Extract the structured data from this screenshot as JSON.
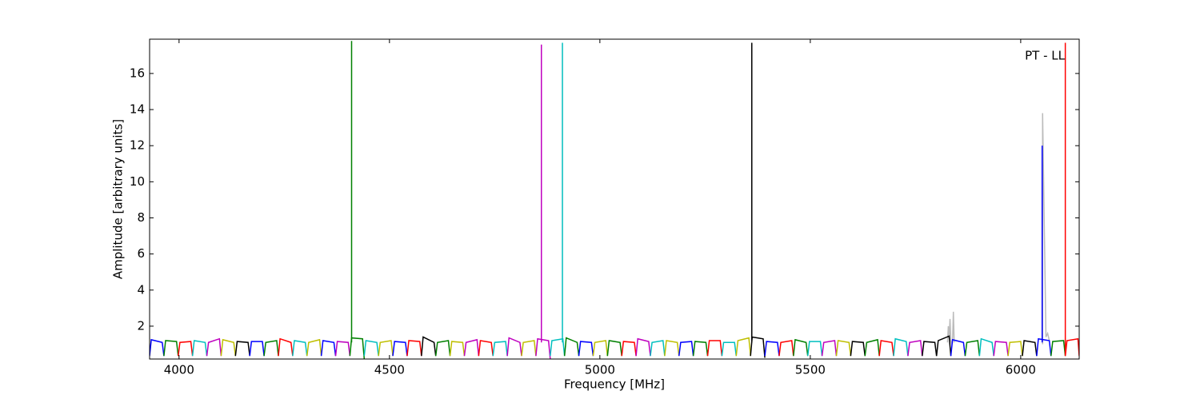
{
  "chart_data": {
    "type": "line",
    "xlabel": "Frequency [MHz]",
    "ylabel": "Amplitude [arbitrary units]",
    "annotation": "PT - LL",
    "xlim": [
      3930,
      6139
    ],
    "ylim": [
      0.18,
      17.9
    ],
    "xticks": [
      4000,
      4500,
      5000,
      5500,
      6000
    ],
    "yticks": [
      2,
      4,
      6,
      8,
      10,
      12,
      14,
      16
    ],
    "series": [
      {
        "color": "#bbbbbb",
        "x": [
          5826,
          5828,
          5830,
          5832,
          5834,
          5836,
          5838,
          5840,
          5842
        ],
        "values": [
          1.1,
          2.0,
          1.3,
          2.4,
          1.2,
          1.0,
          1.1,
          2.8,
          1.1
        ]
      },
      {
        "color": "#bbbbbb",
        "x": [
          6052,
          6052,
          6060,
          6064,
          6068
        ],
        "values": [
          1.0,
          13.8,
          1.4,
          1.6,
          1.2
        ]
      },
      {
        "color": "#0000ff",
        "x": [
          3930,
          3934,
          3960,
          3964
        ],
        "values": [
          0.35,
          1.25,
          1.1,
          0.35
        ]
      },
      {
        "color": "#008000",
        "x": [
          3964,
          3968,
          3994,
          3998
        ],
        "values": [
          0.35,
          1.2,
          1.15,
          0.35
        ]
      },
      {
        "color": "#ff0000",
        "x": [
          3998,
          4002,
          4028,
          4032
        ],
        "values": [
          0.35,
          1.1,
          1.15,
          0.35
        ]
      },
      {
        "color": "#00bfbf",
        "x": [
          4032,
          4036,
          4062,
          4066
        ],
        "values": [
          0.35,
          1.2,
          1.1,
          0.35
        ]
      },
      {
        "color": "#bf00bf",
        "x": [
          4066,
          4070,
          4096,
          4100
        ],
        "values": [
          0.35,
          1.1,
          1.3,
          0.35
        ]
      },
      {
        "color": "#bfbf00",
        "x": [
          4100,
          4104,
          4130,
          4134
        ],
        "values": [
          0.35,
          1.25,
          1.1,
          0.35
        ]
      },
      {
        "color": "#000000",
        "x": [
          4134,
          4138,
          4164,
          4168
        ],
        "values": [
          0.35,
          1.15,
          1.1,
          0.35
        ]
      },
      {
        "color": "#0000ff",
        "x": [
          4168,
          4172,
          4198,
          4202
        ],
        "values": [
          0.35,
          1.15,
          1.15,
          0.35
        ]
      },
      {
        "color": "#008000",
        "x": [
          4202,
          4206,
          4232,
          4236
        ],
        "values": [
          0.35,
          1.1,
          1.2,
          0.35
        ]
      },
      {
        "color": "#ff0000",
        "x": [
          4236,
          4240,
          4266,
          4270
        ],
        "values": [
          0.35,
          1.3,
          1.1,
          0.35
        ]
      },
      {
        "color": "#00bfbf",
        "x": [
          4270,
          4274,
          4300,
          4304
        ],
        "values": [
          0.35,
          1.2,
          1.1,
          0.35
        ]
      },
      {
        "color": "#bfbf00",
        "x": [
          4304,
          4308,
          4334,
          4338
        ],
        "values": [
          0.35,
          1.1,
          1.25,
          0.35
        ]
      },
      {
        "color": "#0000ff",
        "x": [
          4338,
          4342,
          4368,
          4372
        ],
        "values": [
          0.35,
          1.2,
          1.1,
          0.35
        ]
      },
      {
        "color": "#bf00bf",
        "x": [
          4372,
          4376,
          4402,
          4406
        ],
        "values": [
          0.35,
          1.15,
          1.1,
          0.35
        ]
      },
      {
        "color": "#008000",
        "x": [
          4406,
          4410,
          4436,
          4440
        ],
        "values": [
          0.35,
          1.35,
          1.3,
          0.2
        ]
      },
      {
        "color": "#00bfbf",
        "x": [
          4440,
          4444,
          4470,
          4474
        ],
        "values": [
          0.35,
          1.2,
          1.1,
          0.35
        ]
      },
      {
        "color": "#bfbf00",
        "x": [
          4474,
          4478,
          4504,
          4508
        ],
        "values": [
          0.35,
          1.1,
          1.2,
          0.35
        ]
      },
      {
        "color": "#0000ff",
        "x": [
          4508,
          4512,
          4538,
          4542
        ],
        "values": [
          0.35,
          1.15,
          1.1,
          0.35
        ]
      },
      {
        "color": "#ff0000",
        "x": [
          4542,
          4546,
          4572,
          4576
        ],
        "values": [
          0.35,
          1.2,
          1.15,
          0.35
        ]
      },
      {
        "color": "#000000",
        "x": [
          4576,
          4580,
          4606,
          4610
        ],
        "values": [
          0.35,
          1.4,
          1.1,
          0.35
        ]
      },
      {
        "color": "#008000",
        "x": [
          4610,
          4614,
          4640,
          4644
        ],
        "values": [
          0.35,
          1.1,
          1.2,
          0.35
        ]
      },
      {
        "color": "#bfbf00",
        "x": [
          4644,
          4648,
          4674,
          4678
        ],
        "values": [
          0.35,
          1.15,
          1.1,
          0.35
        ]
      },
      {
        "color": "#bf00bf",
        "x": [
          4678,
          4682,
          4708,
          4712
        ],
        "values": [
          0.35,
          1.1,
          1.25,
          0.35
        ]
      },
      {
        "color": "#ff0000",
        "x": [
          4712,
          4716,
          4742,
          4746
        ],
        "values": [
          0.35,
          1.2,
          1.1,
          0.35
        ]
      },
      {
        "color": "#00bfbf",
        "x": [
          4746,
          4750,
          4776,
          4780
        ],
        "values": [
          0.35,
          1.1,
          1.15,
          0.35
        ]
      },
      {
        "color": "#bf00bf",
        "x": [
          4780,
          4784,
          4810,
          4814
        ],
        "values": [
          0.35,
          1.35,
          1.1,
          0.35
        ]
      },
      {
        "color": "#bfbf00",
        "x": [
          4814,
          4818,
          4844,
          4848
        ],
        "values": [
          0.35,
          1.1,
          1.2,
          0.35
        ]
      },
      {
        "color": "#bf00bf",
        "x": [
          4848,
          4852,
          4878,
          4882
        ],
        "values": [
          0.35,
          1.3,
          1.2,
          0.2
        ]
      },
      {
        "color": "#00bfbf",
        "x": [
          4882,
          4886,
          4912,
          4916
        ],
        "values": [
          0.35,
          1.2,
          1.3,
          0.35
        ]
      },
      {
        "color": "#008000",
        "x": [
          4916,
          4920,
          4946,
          4950
        ],
        "values": [
          0.35,
          1.35,
          1.1,
          0.35
        ]
      },
      {
        "color": "#0000ff",
        "x": [
          4950,
          4954,
          4980,
          4984
        ],
        "values": [
          0.35,
          1.15,
          1.1,
          0.35
        ]
      },
      {
        "color": "#bfbf00",
        "x": [
          4984,
          4988,
          5014,
          5018
        ],
        "values": [
          0.35,
          1.1,
          1.2,
          0.35
        ]
      },
      {
        "color": "#008000",
        "x": [
          5018,
          5022,
          5048,
          5052
        ],
        "values": [
          0.35,
          1.2,
          1.1,
          0.35
        ]
      },
      {
        "color": "#ff0000",
        "x": [
          5052,
          5056,
          5082,
          5086
        ],
        "values": [
          0.35,
          1.15,
          1.1,
          0.35
        ]
      },
      {
        "color": "#bf00bf",
        "x": [
          5086,
          5090,
          5116,
          5120
        ],
        "values": [
          0.35,
          1.3,
          1.15,
          0.35
        ]
      },
      {
        "color": "#00bfbf",
        "x": [
          5120,
          5124,
          5150,
          5154
        ],
        "values": [
          0.35,
          1.1,
          1.2,
          0.35
        ]
      },
      {
        "color": "#bfbf00",
        "x": [
          5154,
          5158,
          5184,
          5188
        ],
        "values": [
          0.35,
          1.2,
          1.1,
          0.35
        ]
      },
      {
        "color": "#0000ff",
        "x": [
          5188,
          5192,
          5218,
          5222
        ],
        "values": [
          0.35,
          1.1,
          1.15,
          0.35
        ]
      },
      {
        "color": "#008000",
        "x": [
          5222,
          5226,
          5252,
          5256
        ],
        "values": [
          0.35,
          1.15,
          1.1,
          0.35
        ]
      },
      {
        "color": "#ff0000",
        "x": [
          5256,
          5260,
          5286,
          5290
        ],
        "values": [
          0.35,
          1.2,
          1.2,
          0.35
        ]
      },
      {
        "color": "#00bfbf",
        "x": [
          5290,
          5294,
          5320,
          5324
        ],
        "values": [
          0.35,
          1.1,
          1.1,
          0.35
        ]
      },
      {
        "color": "#bfbf00",
        "x": [
          5324,
          5328,
          5354,
          5358
        ],
        "values": [
          0.35,
          1.2,
          1.35,
          0.35
        ]
      },
      {
        "color": "#000000",
        "x": [
          5358,
          5362,
          5388,
          5392
        ],
        "values": [
          0.35,
          1.4,
          1.3,
          0.25
        ]
      },
      {
        "color": "#0000ff",
        "x": [
          5392,
          5396,
          5422,
          5426
        ],
        "values": [
          0.35,
          1.15,
          1.1,
          0.35
        ]
      },
      {
        "color": "#ff0000",
        "x": [
          5426,
          5430,
          5456,
          5460
        ],
        "values": [
          0.35,
          1.1,
          1.2,
          0.35
        ]
      },
      {
        "color": "#008000",
        "x": [
          5460,
          5464,
          5490,
          5494
        ],
        "values": [
          0.35,
          1.25,
          1.1,
          0.35
        ]
      },
      {
        "color": "#00bfbf",
        "x": [
          5494,
          5498,
          5524,
          5528
        ],
        "values": [
          0.35,
          1.15,
          1.15,
          0.35
        ]
      },
      {
        "color": "#bf00bf",
        "x": [
          5528,
          5532,
          5558,
          5562
        ],
        "values": [
          0.35,
          1.1,
          1.2,
          0.35
        ]
      },
      {
        "color": "#bfbf00",
        "x": [
          5562,
          5566,
          5592,
          5596
        ],
        "values": [
          0.35,
          1.2,
          1.1,
          0.35
        ]
      },
      {
        "color": "#000000",
        "x": [
          5596,
          5600,
          5626,
          5630
        ],
        "values": [
          0.35,
          1.15,
          1.1,
          0.35
        ]
      },
      {
        "color": "#008000",
        "x": [
          5630,
          5634,
          5660,
          5664
        ],
        "values": [
          0.35,
          1.1,
          1.25,
          0.35
        ]
      },
      {
        "color": "#ff0000",
        "x": [
          5664,
          5668,
          5694,
          5698
        ],
        "values": [
          0.35,
          1.2,
          1.1,
          0.35
        ]
      },
      {
        "color": "#00bfbf",
        "x": [
          5698,
          5702,
          5728,
          5732
        ],
        "values": [
          0.35,
          1.3,
          1.15,
          0.35
        ]
      },
      {
        "color": "#bf00bf",
        "x": [
          5732,
          5736,
          5762,
          5766
        ],
        "values": [
          0.35,
          1.1,
          1.2,
          0.35
        ]
      },
      {
        "color": "#000000",
        "x": [
          5766,
          5770,
          5796,
          5800
        ],
        "values": [
          0.35,
          1.15,
          1.1,
          0.35
        ]
      },
      {
        "color": "#000000",
        "x": [
          5800,
          5804,
          5830,
          5834
        ],
        "values": [
          0.35,
          1.2,
          1.45,
          0.35
        ]
      },
      {
        "color": "#0000ff",
        "x": [
          5834,
          5838,
          5864,
          5868
        ],
        "values": [
          0.35,
          1.25,
          1.1,
          0.35
        ]
      },
      {
        "color": "#008000",
        "x": [
          5868,
          5872,
          5898,
          5902
        ],
        "values": [
          0.35,
          1.1,
          1.2,
          0.35
        ]
      },
      {
        "color": "#00bfbf",
        "x": [
          5902,
          5906,
          5932,
          5936
        ],
        "values": [
          0.35,
          1.3,
          1.1,
          0.35
        ]
      },
      {
        "color": "#bf00bf",
        "x": [
          5936,
          5940,
          5966,
          5970
        ],
        "values": [
          0.35,
          1.15,
          1.1,
          0.35
        ]
      },
      {
        "color": "#bfbf00",
        "x": [
          5970,
          5974,
          6000,
          6004
        ],
        "values": [
          0.35,
          1.1,
          1.15,
          0.35
        ]
      },
      {
        "color": "#000000",
        "x": [
          6004,
          6008,
          6034,
          6038
        ],
        "values": [
          0.35,
          1.2,
          1.1,
          0.35
        ]
      },
      {
        "color": "#0000ff",
        "x": [
          6038,
          6042,
          6068,
          6072
        ],
        "values": [
          0.35,
          1.3,
          1.2,
          0.35
        ]
      },
      {
        "color": "#008000",
        "x": [
          6072,
          6076,
          6102,
          6106
        ],
        "values": [
          0.35,
          1.15,
          1.2,
          0.35
        ]
      },
      {
        "color": "#ff0000",
        "x": [
          6106,
          6110,
          6136,
          6139
        ],
        "values": [
          0.35,
          1.2,
          1.3,
          0.35
        ]
      },
      {
        "color": "#008000",
        "x": [
          4410,
          4410
        ],
        "values": [
          1.1,
          17.8
        ]
      },
      {
        "color": "#bf00bf",
        "x": [
          4861,
          4861
        ],
        "values": [
          1.1,
          17.6
        ]
      },
      {
        "color": "#00bfbf",
        "x": [
          4911,
          4911
        ],
        "values": [
          1.1,
          17.7
        ]
      },
      {
        "color": "#000000",
        "x": [
          5361,
          5361
        ],
        "values": [
          1.1,
          17.7
        ]
      },
      {
        "color": "#0000ff",
        "x": [
          6051,
          6051
        ],
        "values": [
          1.1,
          12.0
        ]
      },
      {
        "color": "#ff0000",
        "x": [
          6106,
          6106
        ],
        "values": [
          0.35,
          17.7
        ]
      }
    ]
  }
}
